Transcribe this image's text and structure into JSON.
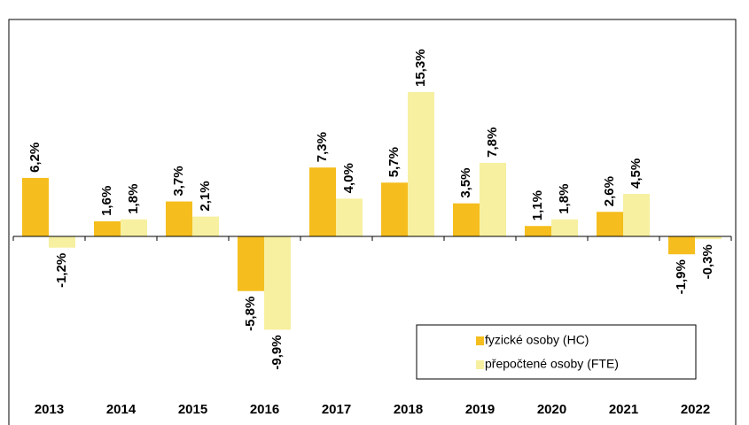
{
  "chart_data": {
    "type": "bar",
    "categories": [
      "2013",
      "2014",
      "2015",
      "2016",
      "2017",
      "2018",
      "2019",
      "2020",
      "2021",
      "2022"
    ],
    "series": [
      {
        "name": "fyzické osoby (HC)",
        "color": "#f5be1e",
        "values": [
          6.2,
          1.6,
          3.7,
          -5.8,
          7.3,
          5.7,
          3.5,
          1.1,
          2.6,
          -1.9
        ],
        "value_labels": [
          "6,2%",
          "1,6%",
          "3,7%",
          "-5,8%",
          "7,3%",
          "5,7%",
          "3,5%",
          "1,1%",
          "2,6%",
          "-1,9%"
        ]
      },
      {
        "name": "přepočtené osoby (FTE)",
        "color": "#f7f0a0",
        "values": [
          -1.2,
          1.8,
          2.1,
          -9.9,
          4.0,
          15.3,
          7.8,
          1.8,
          4.5,
          -0.3
        ],
        "value_labels": [
          "-1,2%",
          "1,8%",
          "2,1%",
          "-9,9%",
          "4,0%",
          "15,3%",
          "7,8%",
          "1,8%",
          "4,5%",
          "-0,3%"
        ]
      }
    ],
    "ylim": [
      -17,
      23
    ]
  }
}
